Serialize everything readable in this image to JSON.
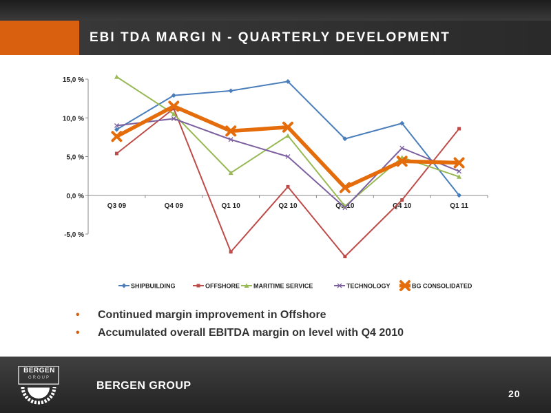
{
  "slide": {
    "title": "EBI TDA MARGI N - QUARTERLY DEVELOPMENT",
    "bullets": [
      "Continued margin improvement in Offshore",
      "Accumulated overall EBITDA margin on level with Q4 2010"
    ],
    "bullet_marker": "•",
    "footer": {
      "logo_text": "BERGEN",
      "logo_subtext": "GROUP",
      "brand": "BERGEN GROUP",
      "page_number": "20"
    },
    "colors": {
      "accent": "#d9600f",
      "title_bar": "#333333"
    }
  },
  "chart_data": {
    "type": "line",
    "categories": [
      "Q3 09",
      "Q4 09",
      "Q1 10",
      "Q2 10",
      "Q3 10",
      "Q4 10",
      "Q1 11"
    ],
    "ylim": [
      -5,
      15
    ],
    "y_ticks": [
      15,
      10,
      5,
      0,
      -5
    ],
    "y_tick_labels": [
      "15,0 %",
      "10,0 %",
      "5,0 %",
      "0,0 %",
      "-5,0 %"
    ],
    "legend_position": "bottom",
    "grid": false,
    "series": [
      {
        "name": "SHIPBUILDING",
        "color": "#4a7ebb",
        "marker": "diamond",
        "values": [
          8.5,
          12.9,
          13.5,
          14.7,
          7.3,
          9.3,
          0.0
        ]
      },
      {
        "name": "OFFSHORE",
        "color": "#be4b48",
        "marker": "square",
        "values": [
          5.4,
          11.2,
          -7.3,
          1.1,
          -7.9,
          -0.6,
          8.6
        ]
      },
      {
        "name": "MARITIME SERVICE",
        "color": "#98b954",
        "marker": "triangle",
        "values": [
          15.3,
          10.5,
          2.9,
          7.7,
          -1.4,
          4.9,
          2.4
        ]
      },
      {
        "name": "TECHNOLOGY",
        "color": "#7d60a0",
        "marker": "x",
        "values": [
          9.0,
          9.9,
          7.2,
          5.0,
          -1.6,
          6.1,
          3.1
        ]
      },
      {
        "name": "BG CONSOLIDATED",
        "color": "#e46c0a",
        "marker": "bigx",
        "values": [
          7.6,
          11.5,
          8.3,
          8.8,
          1.0,
          4.4,
          4.2
        ]
      }
    ]
  }
}
